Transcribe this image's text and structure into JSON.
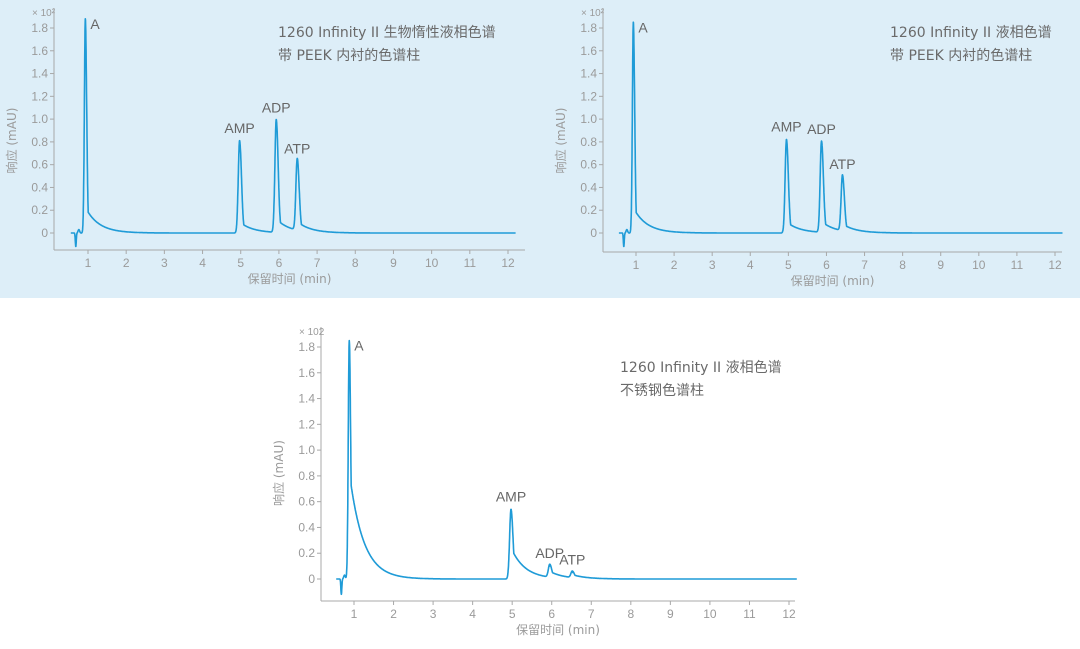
{
  "colors": {
    "top_background": "#ddeef8",
    "trace": "#1f9bd7",
    "axis": "#a8a8a8",
    "text": "#6a6a6a"
  },
  "chart_data": [
    {
      "type": "line",
      "title_lines": [
        "1260 Infinity II 生物惰性液相色谱",
        "带 PEEK 内衬的色谱柱"
      ],
      "xlabel": "保留时间 (min)",
      "ylabel": "响应 (mAU)",
      "y_multiplier": "× 10²",
      "xlim": [
        0.1,
        12.2
      ],
      "ylim": [
        -0.15,
        1.9
      ],
      "xticks": [
        "1",
        "2",
        "3",
        "4",
        "5",
        "6",
        "7",
        "8",
        "9",
        "10",
        "11",
        "12"
      ],
      "yticks": [
        "0",
        "0.2",
        "0.4",
        "0.6",
        "0.8",
        "1.0",
        "1.2",
        "1.4",
        "1.6",
        "1.8"
      ],
      "peaks": [
        {
          "label": "A",
          "time": 0.93,
          "height": 1.88
        },
        {
          "label": "AMP",
          "time": 4.97,
          "height": 0.81
        },
        {
          "label": "ADP",
          "time": 5.93,
          "height": 0.99
        },
        {
          "label": "ATP",
          "time": 6.48,
          "height": 0.63
        }
      ]
    },
    {
      "type": "line",
      "title_lines": [
        "1260 Infinity II 液相色谱",
        "带 PEEK 内衬的色谱柱"
      ],
      "xlabel": "保留时间 (min)",
      "ylabel": "响应 (mAU)",
      "y_multiplier": "× 10²",
      "xlim": [
        0.1,
        12.2
      ],
      "ylim": [
        -0.15,
        1.9
      ],
      "xticks": [
        "1",
        "2",
        "3",
        "4",
        "5",
        "6",
        "7",
        "8",
        "9",
        "10",
        "11",
        "12"
      ],
      "yticks": [
        "0",
        "0.2",
        "0.4",
        "0.6",
        "0.8",
        "1.0",
        "1.2",
        "1.4",
        "1.6",
        "1.8"
      ],
      "peaks": [
        {
          "label": "A",
          "time": 0.93,
          "height": 1.85
        },
        {
          "label": "AMP",
          "time": 4.95,
          "height": 0.82
        },
        {
          "label": "ADP",
          "time": 5.87,
          "height": 0.8
        },
        {
          "label": "ATP",
          "time": 6.42,
          "height": 0.49
        }
      ]
    },
    {
      "type": "line",
      "title_lines": [
        "1260 Infinity II 液相色谱",
        "不锈钢色谱柱"
      ],
      "xlabel": "保留时间 (min)",
      "ylabel": "响应 (mAU)",
      "y_multiplier": "× 102",
      "xlim": [
        0.1,
        12.2
      ],
      "ylim": [
        -0.17,
        1.9
      ],
      "xticks": [
        "1",
        "2",
        "3",
        "4",
        "5",
        "6",
        "7",
        "8",
        "9",
        "10",
        "11",
        "12"
      ],
      "yticks": [
        "0",
        "0.2",
        "0.4",
        "0.6",
        "0.8",
        "1.0",
        "1.2",
        "1.4",
        "1.6",
        "1.8"
      ],
      "peaks": [
        {
          "label": "A",
          "time": 0.88,
          "height": 1.85
        },
        {
          "label": "AMP",
          "time": 4.97,
          "height": 0.54
        },
        {
          "label": "ADP",
          "time": 5.95,
          "height": 0.1
        },
        {
          "label": "ATP",
          "time": 6.52,
          "height": 0.05
        }
      ]
    }
  ]
}
